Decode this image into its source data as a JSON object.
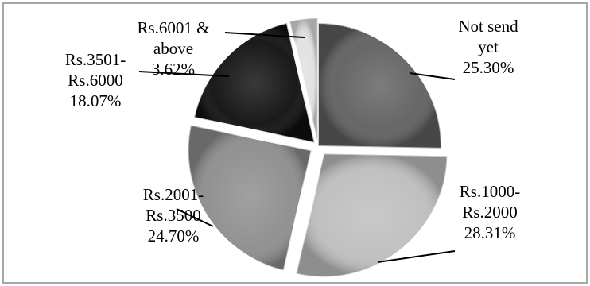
{
  "chart_data": {
    "type": "pie",
    "title": "",
    "start_angle_deg": -90,
    "direction": "clockwise",
    "border": true,
    "style": "3d-shaded",
    "slices": [
      {
        "lines": [
          "Not send",
          "yet"
        ],
        "percent_label": "25.30%",
        "value": 25.3,
        "color": "#5f5f5f"
      },
      {
        "lines": [
          "Rs.1000-",
          "Rs.2000"
        ],
        "percent_label": "28.31%",
        "value": 28.31,
        "color": "#bdbdbd"
      },
      {
        "lines": [
          "Rs.2001-",
          "Rs.3500"
        ],
        "percent_label": "24.70%",
        "value": 24.7,
        "color": "#8c8c8c"
      },
      {
        "lines": [
          "Rs.3501-",
          "Rs.6000"
        ],
        "percent_label": "18.07%",
        "value": 18.07,
        "color": "#0e0e0e"
      },
      {
        "lines": [
          "Rs.6001 &",
          "above"
        ],
        "percent_label": "3.62%",
        "value": 3.62,
        "color": "#e0e0e0"
      }
    ]
  }
}
